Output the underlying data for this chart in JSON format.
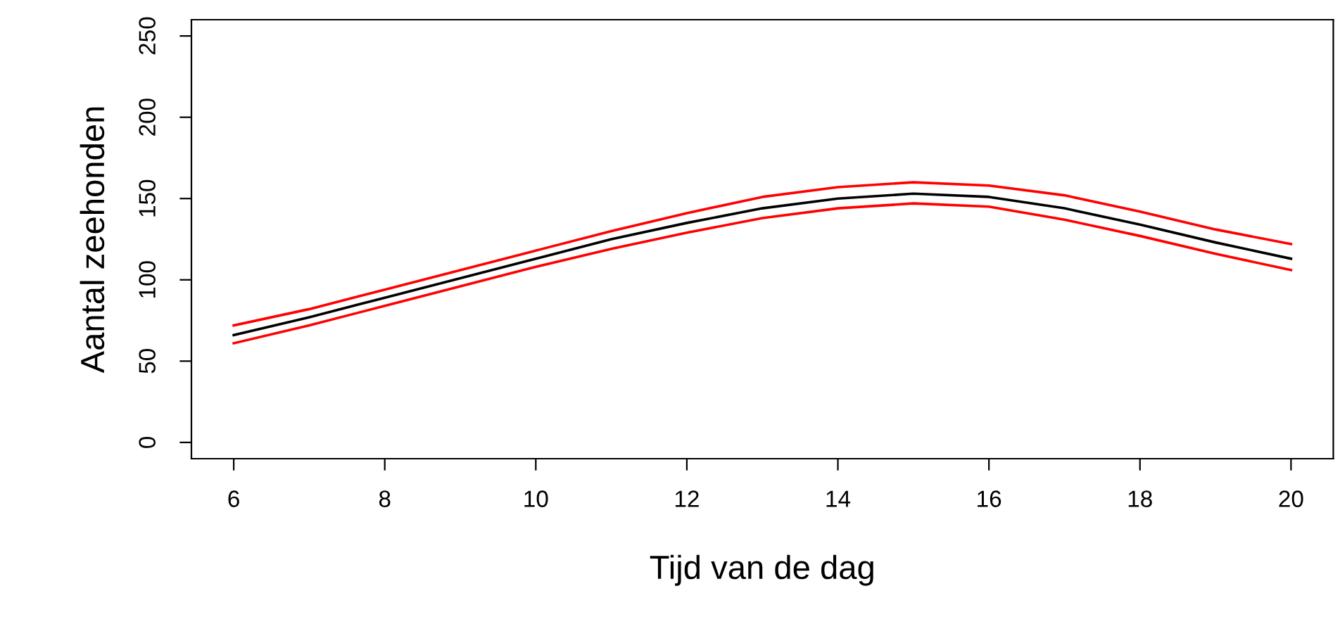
{
  "chart_data": {
    "type": "line",
    "xlabel": "Tijd van de dag",
    "ylabel": "Aantal zeehonden",
    "x": [
      6,
      7,
      8,
      9,
      10,
      11,
      12,
      13,
      14,
      15,
      16,
      17,
      18,
      19,
      20
    ],
    "series": [
      {
        "color": "#ff0000",
        "values": [
          72,
          82,
          94,
          106,
          118,
          130,
          141,
          151,
          157,
          160,
          158,
          152,
          142,
          131,
          122
        ]
      },
      {
        "color": "#000000",
        "values": [
          66,
          77,
          89,
          101,
          113,
          125,
          135,
          144,
          150,
          153,
          151,
          144,
          134,
          123,
          113
        ]
      },
      {
        "color": "#ff0000",
        "values": [
          61,
          72,
          84,
          96,
          108,
          119,
          129,
          138,
          144,
          147,
          145,
          137,
          127,
          116,
          106
        ]
      }
    ],
    "xlim": [
      5.44,
      20.56
    ],
    "ylim": [
      -10,
      260
    ],
    "xticks": [
      6,
      8,
      10,
      12,
      14,
      16,
      18,
      20
    ],
    "yticks": [
      0,
      50,
      100,
      150,
      200,
      250
    ],
    "grid": false,
    "marker": "none",
    "line_style": "solid"
  }
}
